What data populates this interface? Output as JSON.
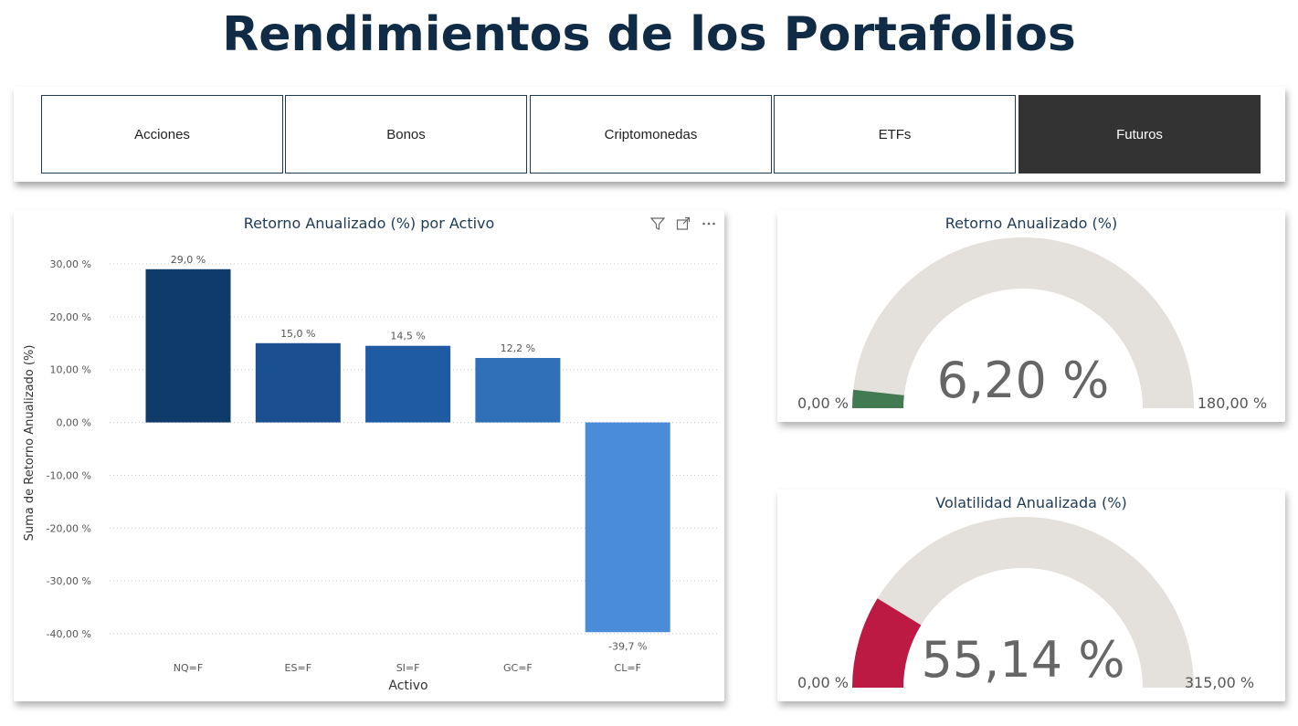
{
  "page": {
    "title": "Rendimientos de los Portafolios"
  },
  "slicer": {
    "items": [
      {
        "label": "Acciones",
        "selected": false
      },
      {
        "label": "Bonos",
        "selected": false
      },
      {
        "label": "Criptomonedas",
        "selected": false
      },
      {
        "label": "ETFs",
        "selected": false
      },
      {
        "label": "Futuros",
        "selected": true
      }
    ]
  },
  "colors": {
    "bar_nq": "#0f3b6b",
    "bar_es": "#1a5091",
    "bar_si": "#1e5ba3",
    "bar_gc": "#3070b8",
    "bar_cl": "#4a8cd8",
    "gauge_track": "#e4e0db",
    "gauge_return": "#427b52",
    "gauge_volatility": "#bc1a42",
    "title_dark": "#0f2b46"
  },
  "chart_data": {
    "type": "bar",
    "title": "Retorno Anualizado (%) por Activo",
    "xlabel": "Activo",
    "ylabel": "Suma de Retorno Anualizado (%)",
    "categories": [
      "NQ=F",
      "ES=F",
      "SI=F",
      "GC=F",
      "CL=F"
    ],
    "values": [
      29.0,
      15.0,
      14.5,
      12.2,
      -39.7
    ],
    "data_labels": [
      "29,0 %",
      "15,0 %",
      "14,5 %",
      "12,2 %",
      "-39,7 %"
    ],
    "ylim": [
      -40,
      30
    ],
    "yticks": [
      30,
      20,
      10,
      0,
      -10,
      -20,
      -30,
      -40
    ],
    "ytick_labels": [
      "30,00 %",
      "20,00 %",
      "10,00 %",
      "0,00 %",
      "-10,00 %",
      "-20,00 %",
      "-30,00 %",
      "-40,00 %"
    ],
    "grid": true
  },
  "gauges": [
    {
      "title": "Retorno Anualizado (%)",
      "value": 6.2,
      "value_label": "6,20 %",
      "min": 0,
      "max": 180,
      "min_label": "0,00 %",
      "max_label": "180,00 %"
    },
    {
      "title": "Volatilidad Anualizada (%)",
      "value": 55.14,
      "value_label": "55,14 %",
      "min": 0,
      "max": 315,
      "min_label": "0,00 %",
      "max_label": "315,00 %"
    }
  ],
  "icons": {
    "filter": "filter-icon",
    "focus": "focus-mode-icon",
    "more": "more-options-icon"
  }
}
